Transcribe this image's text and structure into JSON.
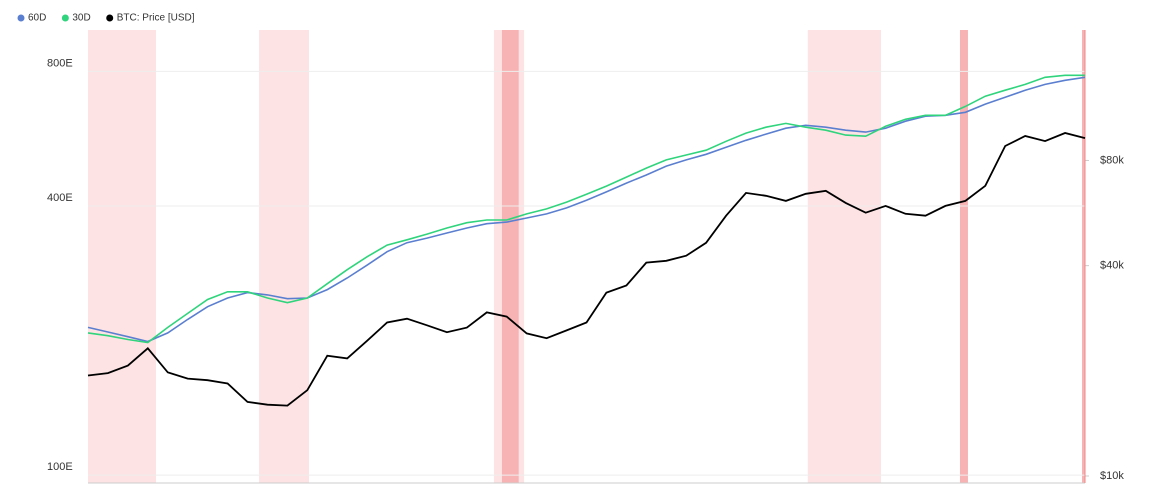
{
  "chart_data": {
    "type": "line",
    "log_scale": true,
    "grid": true,
    "legend_position": "top-left",
    "ylim": [
      96,
      990
    ],
    "yticks": [
      {
        "value": 100,
        "label": "100E"
      },
      {
        "value": 400,
        "label": "400E"
      },
      {
        "value": 800,
        "label": "800E"
      }
    ],
    "y2lim": [
      9550,
      189000
    ],
    "y2ticks": [
      {
        "value": 10000,
        "label": "$10k"
      },
      {
        "value": 40000,
        "label": "$40k"
      },
      {
        "value": 80000,
        "label": "$80k"
      }
    ],
    "shaded_regions": [
      {
        "start": 0,
        "end": 3.41,
        "color": "#fde3e3"
      },
      {
        "start": 8.58,
        "end": 11.08,
        "color": "#fde3e3"
      },
      {
        "start": 20.36,
        "end": 21.87,
        "color": "#fde3e3"
      },
      {
        "start": 20.76,
        "end": 21.6,
        "color": "#f7b3b3"
      },
      {
        "start": 36.1,
        "end": 39.77,
        "color": "#fde3e3"
      },
      {
        "start": 43.73,
        "end": 44.13,
        "color": "#f7b3b3"
      },
      {
        "start": 49.85,
        "end": 50,
        "color": "#f7b3b3"
      }
    ],
    "series": [
      {
        "name": "60D",
        "color": "#5b7fd0",
        "axis": "y",
        "values": [
          214,
          209,
          204,
          199,
          208,
          223,
          238,
          249,
          256,
          253,
          248,
          249,
          260,
          276,
          295,
          316,
          331,
          339,
          348,
          357,
          365,
          368,
          376,
          384,
          396,
          412,
          430,
          450,
          469,
          491,
          507,
          522,
          541,
          561,
          579,
          597,
          606,
          600,
          591,
          585,
          597,
          619,
          635,
          638,
          648,
          676,
          700,
          726,
          748,
          764,
          776
        ]
      },
      {
        "name": "30D",
        "color": "#2fd47c",
        "axis": "y",
        "values": [
          208,
          205,
          201,
          198,
          214,
          230,
          247,
          257,
          257,
          249,
          243,
          249,
          268,
          288,
          308,
          327,
          336,
          346,
          357,
          367,
          372,
          372,
          384,
          394,
          408,
          425,
          443,
          464,
          486,
          507,
          520,
          533,
          558,
          582,
          600,
          612,
          600,
          591,
          576,
          573,
          603,
          625,
          638,
          638,
          668,
          704,
          726,
          748,
          776,
          784,
          784
        ]
      },
      {
        "name": "BTC: Price [USD]",
        "color": "#000000",
        "axis": "y2",
        "values": [
          19400,
          19700,
          20700,
          23200,
          19800,
          19000,
          18800,
          18400,
          16300,
          16000,
          15900,
          17600,
          22100,
          21700,
          24400,
          27500,
          28200,
          27000,
          25800,
          26600,
          29400,
          28600,
          25600,
          24800,
          26100,
          27500,
          33500,
          35100,
          40800,
          41300,
          42700,
          46500,
          55600,
          64600,
          63400,
          61300,
          64200,
          65500,
          60500,
          56700,
          59300,
          56300,
          55600,
          59300,
          61300,
          67700,
          88000,
          94000,
          90900,
          95900,
          92700
        ]
      }
    ]
  }
}
